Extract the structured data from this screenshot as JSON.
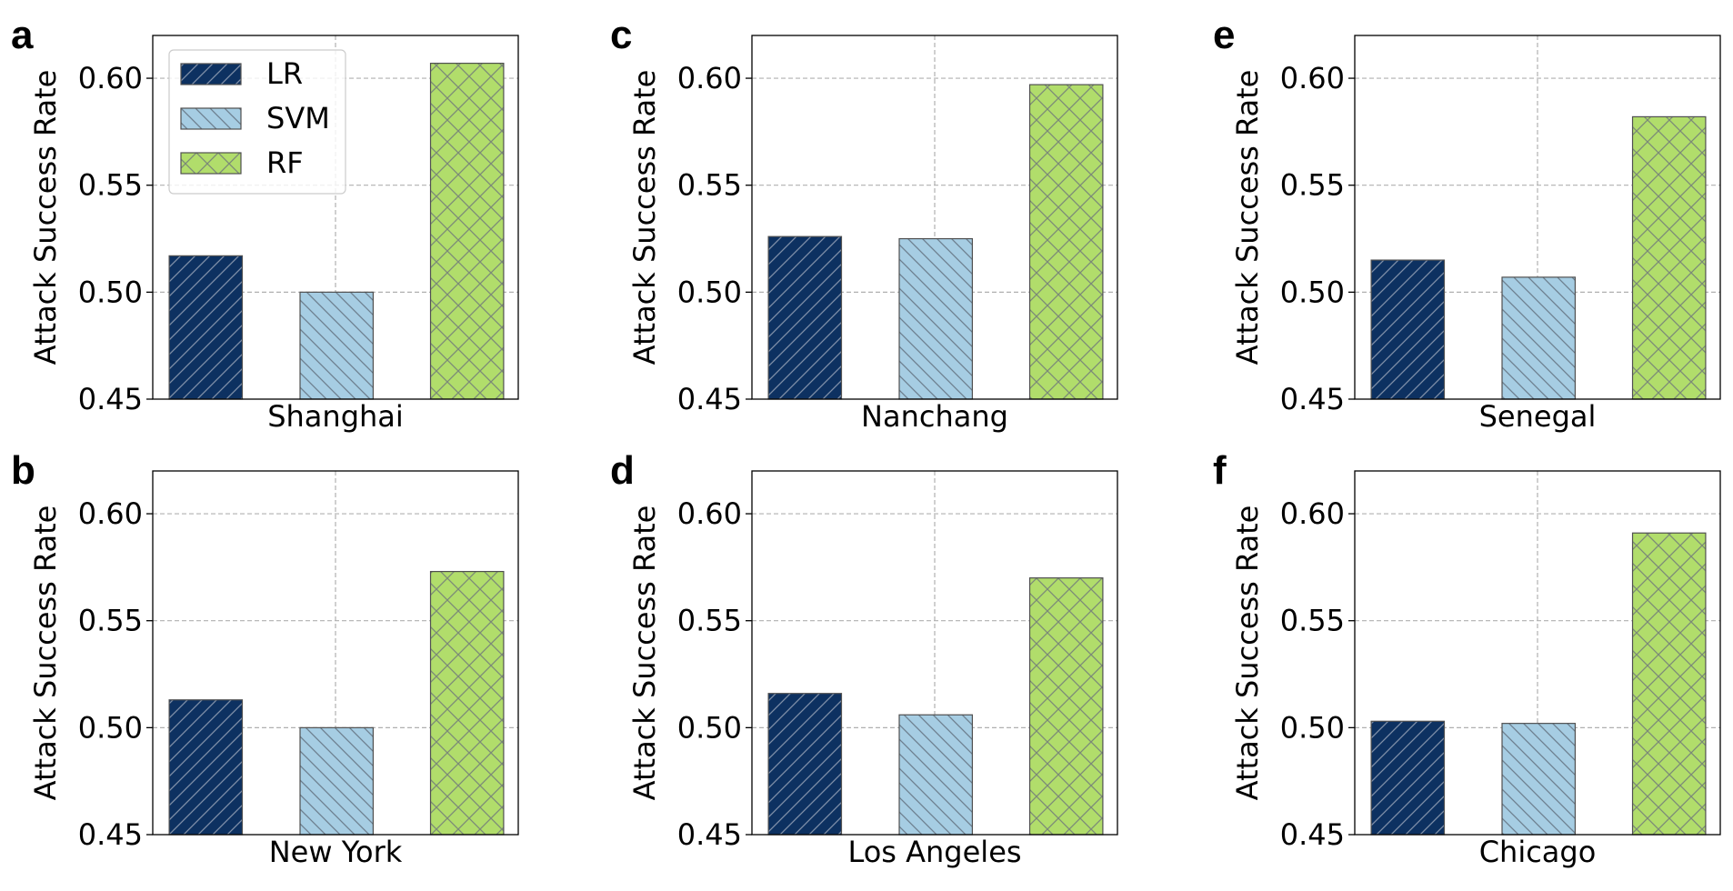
{
  "chart_data": [
    {
      "type": "bar",
      "panel": "a",
      "categories": [
        "Shanghai"
      ],
      "series": [
        {
          "name": "LR",
          "values": [
            0.517
          ]
        },
        {
          "name": "SVM",
          "values": [
            0.5
          ]
        },
        {
          "name": "RF",
          "values": [
            0.607
          ]
        }
      ],
      "xlabel": "Shanghai",
      "ylabel": "Attack Success Rate",
      "ylim": [
        0.45,
        0.62
      ],
      "yticks": [
        "0.45",
        "0.50",
        "0.55",
        "0.60"
      ],
      "grid": true,
      "legend": "top-left"
    },
    {
      "type": "bar",
      "panel": "b",
      "categories": [
        "New York"
      ],
      "series": [
        {
          "name": "LR",
          "values": [
            0.513
          ]
        },
        {
          "name": "SVM",
          "values": [
            0.5
          ]
        },
        {
          "name": "RF",
          "values": [
            0.573
          ]
        }
      ],
      "xlabel": "New York",
      "ylabel": "Attack Success Rate",
      "ylim": [
        0.45,
        0.62
      ],
      "yticks": [
        "0.45",
        "0.50",
        "0.55",
        "0.60"
      ],
      "grid": true
    },
    {
      "type": "bar",
      "panel": "c",
      "categories": [
        "Nanchang"
      ],
      "series": [
        {
          "name": "LR",
          "values": [
            0.526
          ]
        },
        {
          "name": "SVM",
          "values": [
            0.525
          ]
        },
        {
          "name": "RF",
          "values": [
            0.597
          ]
        }
      ],
      "xlabel": "Nanchang",
      "ylabel": "Attack Success Rate",
      "ylim": [
        0.45,
        0.62
      ],
      "yticks": [
        "0.45",
        "0.50",
        "0.55",
        "0.60"
      ],
      "grid": true
    },
    {
      "type": "bar",
      "panel": "d",
      "categories": [
        "Los Angeles"
      ],
      "series": [
        {
          "name": "LR",
          "values": [
            0.516
          ]
        },
        {
          "name": "SVM",
          "values": [
            0.506
          ]
        },
        {
          "name": "RF",
          "values": [
            0.57
          ]
        }
      ],
      "xlabel": "Los Angeles",
      "ylabel": "Attack Success Rate",
      "ylim": [
        0.45,
        0.62
      ],
      "yticks": [
        "0.45",
        "0.50",
        "0.55",
        "0.60"
      ],
      "grid": true
    },
    {
      "type": "bar",
      "panel": "e",
      "categories": [
        "Senegal"
      ],
      "series": [
        {
          "name": "LR",
          "values": [
            0.515
          ]
        },
        {
          "name": "SVM",
          "values": [
            0.507
          ]
        },
        {
          "name": "RF",
          "values": [
            0.582
          ]
        }
      ],
      "xlabel": "Senegal",
      "ylabel": "Attack Success Rate",
      "ylim": [
        0.45,
        0.62
      ],
      "yticks": [
        "0.45",
        "0.50",
        "0.55",
        "0.60"
      ],
      "grid": true
    },
    {
      "type": "bar",
      "panel": "f",
      "categories": [
        "Chicago"
      ],
      "series": [
        {
          "name": "LR",
          "values": [
            0.503
          ]
        },
        {
          "name": "SVM",
          "values": [
            0.502
          ]
        },
        {
          "name": "RF",
          "values": [
            0.591
          ]
        }
      ],
      "xlabel": "Chicago",
      "ylabel": "Attack Success Rate",
      "ylim": [
        0.45,
        0.62
      ],
      "yticks": [
        "0.45",
        "0.50",
        "0.55",
        "0.60"
      ],
      "grid": true
    }
  ],
  "series_styles": [
    {
      "name": "LR",
      "color": "#0d3161",
      "hatch": "forward-diagonal",
      "hatch_color": "#7f8fa8"
    },
    {
      "name": "SVM",
      "color": "#a6cde3",
      "hatch": "back-diagonal",
      "hatch_color": "#6d7f8f"
    },
    {
      "name": "RF",
      "color": "#b1dd6b",
      "hatch": "crosshatch",
      "hatch_color": "#7c8a78"
    }
  ]
}
